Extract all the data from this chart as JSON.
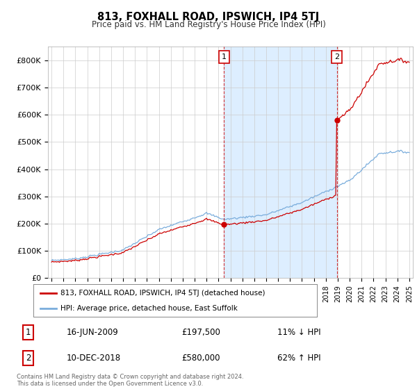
{
  "title": "813, FOXHALL ROAD, IPSWICH, IP4 5TJ",
  "subtitle": "Price paid vs. HM Land Registry's House Price Index (HPI)",
  "hpi_label": "HPI: Average price, detached house, East Suffolk",
  "property_label": "813, FOXHALL ROAD, IPSWICH, IP4 5TJ (detached house)",
  "footnote": "Contains HM Land Registry data © Crown copyright and database right 2024.\nThis data is licensed under the Open Government Licence v3.0.",
  "transaction1": {
    "label": "1",
    "date": "16-JUN-2009",
    "price": "£197,500",
    "hpi_text": "11% ↓ HPI",
    "year": 2009.46
  },
  "transaction2": {
    "label": "2",
    "date": "10-DEC-2018",
    "price": "£580,000",
    "hpi_text": "62% ↑ HPI",
    "year": 2018.92
  },
  "t1_price": 197500,
  "t2_price": 580000,
  "ylim": [
    0,
    850000
  ],
  "yticks": [
    0,
    100000,
    200000,
    300000,
    400000,
    500000,
    600000,
    700000,
    800000
  ],
  "ytick_labels": [
    "£0",
    "£100K",
    "£200K",
    "£300K",
    "£400K",
    "£500K",
    "£600K",
    "£700K",
    "£800K"
  ],
  "hpi_color": "#7aaddc",
  "price_color": "#cc0000",
  "shade_color": "#ddeeff",
  "background_color": "#ffffff",
  "grid_color": "#cccccc",
  "xlim_start": 1994.7,
  "xlim_end": 2025.3
}
